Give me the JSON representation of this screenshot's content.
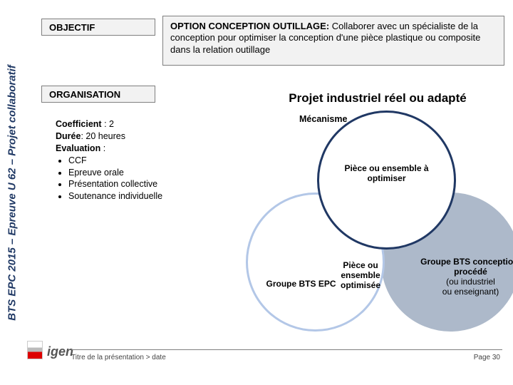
{
  "sidebar": {
    "label": "BTS EPC 2015 – Epreuve U 62 – Projet collaboratif"
  },
  "objectif": {
    "label": "OBJECTIF"
  },
  "option": {
    "title": "OPTION CONCEPTION OUTILLAGE:",
    "text": "Collaborer avec un spécialiste de la conception pour optimiser la conception d'une pièce plastique ou composite dans la relation outillage"
  },
  "organisation": {
    "label": "ORGANISATION"
  },
  "coef": {
    "line1": "Coefficient : 2",
    "line2": "Durée: 20 heures",
    "line3": "Evaluation :",
    "items": [
      "CCF",
      "Epreuve orale",
      "Présentation collective",
      "Soutenance individuelle"
    ]
  },
  "projet": {
    "title": "Projet industriel réel ou adapté"
  },
  "venn": {
    "mechanism": "Mécanisme",
    "top": "Pièce ou ensemble à optimiser",
    "left": "Groupe BTS EPC",
    "right_line1": "Groupe BTS conception, procédé",
    "right_line2": "(ou industriel",
    "right_line3": "ou enseignant)",
    "overlap_bottom": "Pièce ou ensemble optimisée",
    "colors": {
      "top_border": "#203864",
      "left_border": "#b3c7e7",
      "right_fill": "#adb9ca"
    }
  },
  "footer": {
    "title": "Titre de la présentation > date",
    "page": "Page 30",
    "logo_text": "igen"
  }
}
